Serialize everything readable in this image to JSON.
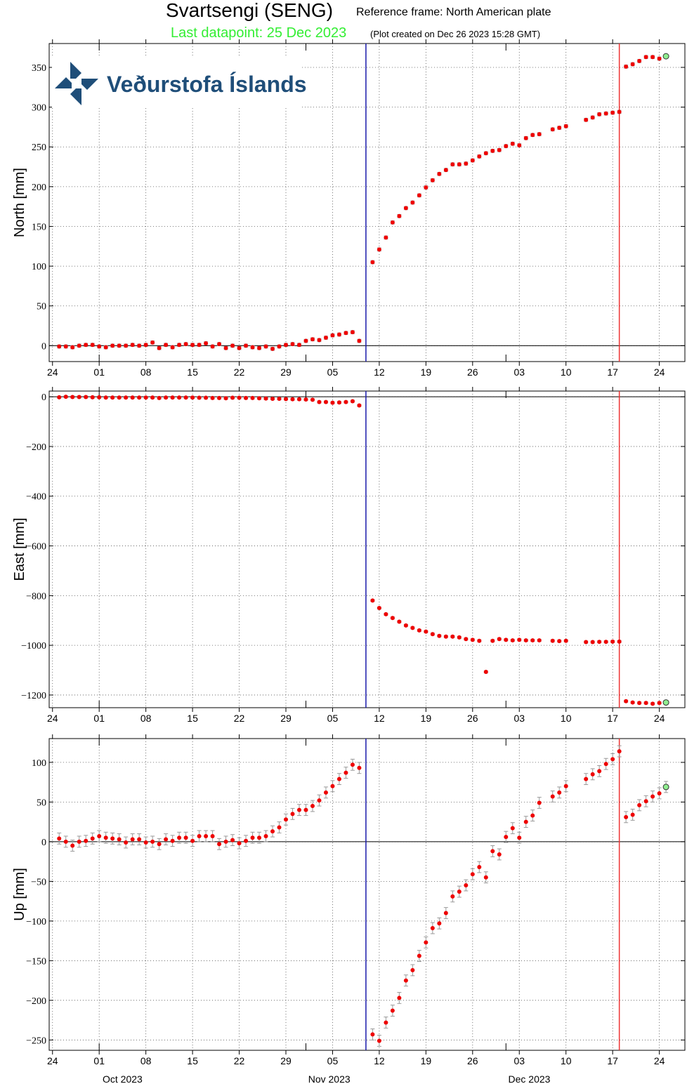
{
  "title": "Svartsengi (SENG)",
  "subtitle": "Reference frame: North American plate",
  "last_datapoint": "Last datapoint: 25 Dec 2023",
  "created": "(Plot created on Dec 26 2023 15:28 GMT)",
  "logo": "Veðurstofa Íslands",
  "chart_data": {
    "type": "scatter",
    "x": [
      "2023-09-25",
      "2023-09-26",
      "2023-09-27",
      "2023-09-28",
      "2023-09-29",
      "2023-09-30",
      "2023-10-01",
      "2023-10-02",
      "2023-10-03",
      "2023-10-04",
      "2023-10-05",
      "2023-10-06",
      "2023-10-07",
      "2023-10-08",
      "2023-10-09",
      "2023-10-10",
      "2023-10-11",
      "2023-10-12",
      "2023-10-13",
      "2023-10-14",
      "2023-10-15",
      "2023-10-16",
      "2023-10-17",
      "2023-10-18",
      "2023-10-19",
      "2023-10-20",
      "2023-10-21",
      "2023-10-22",
      "2023-10-23",
      "2023-10-24",
      "2023-10-25",
      "2023-10-26",
      "2023-10-27",
      "2023-10-28",
      "2023-10-29",
      "2023-10-30",
      "2023-10-31",
      "2023-11-01",
      "2023-11-02",
      "2023-11-03",
      "2023-11-04",
      "2023-11-05",
      "2023-11-06",
      "2023-11-07",
      "2023-11-08",
      "2023-11-09",
      "2023-11-11",
      "2023-11-12",
      "2023-11-13",
      "2023-11-14",
      "2023-11-15",
      "2023-11-16",
      "2023-11-17",
      "2023-11-18",
      "2023-11-19",
      "2023-11-20",
      "2023-11-21",
      "2023-11-22",
      "2023-11-23",
      "2023-11-24",
      "2023-11-25",
      "2023-11-26",
      "2023-11-27",
      "2023-11-28",
      "2023-11-29",
      "2023-11-30",
      "2023-12-01",
      "2023-12-02",
      "2023-12-03",
      "2023-12-04",
      "2023-12-05",
      "2023-12-06",
      "2023-12-08",
      "2023-12-09",
      "2023-12-10",
      "2023-12-13",
      "2023-12-14",
      "2023-12-15",
      "2023-12-16",
      "2023-12-17",
      "2023-12-18",
      "2023-12-19",
      "2023-12-20",
      "2023-12-21",
      "2023-12-22",
      "2023-12-23",
      "2023-12-24",
      "2023-12-25"
    ],
    "xlim": [
      "2023-09-23T12:00Z",
      "2023-12-27T20:00Z"
    ],
    "xticks": [
      {
        "value": "2023-09-24",
        "label": "24"
      },
      {
        "value": "2023-10-01",
        "label": "01"
      },
      {
        "value": "2023-10-08",
        "label": "08"
      },
      {
        "value": "2023-10-15",
        "label": "15"
      },
      {
        "value": "2023-10-22",
        "label": "22"
      },
      {
        "value": "2023-10-29",
        "label": "29"
      },
      {
        "value": "2023-11-05",
        "label": "05"
      },
      {
        "value": "2023-11-12",
        "label": "12"
      },
      {
        "value": "2023-11-19",
        "label": "19"
      },
      {
        "value": "2023-11-26",
        "label": "26"
      },
      {
        "value": "2023-12-03",
        "label": "03"
      },
      {
        "value": "2023-12-10",
        "label": "10"
      },
      {
        "value": "2023-12-17",
        "label": "17"
      },
      {
        "value": "2023-12-24",
        "label": "24"
      }
    ],
    "months": [
      {
        "value": "2023-10-01",
        "label": "Oct 2023"
      },
      {
        "value": "2023-11-01",
        "label": "Nov 2023"
      },
      {
        "value": "2023-12-01",
        "label": "Dec 2023"
      }
    ],
    "events": [
      {
        "x": "2023-11-10",
        "color": "#1a1aaa"
      },
      {
        "x": "2023-12-18",
        "color": "#ee3333"
      }
    ],
    "grid": true,
    "point_color": "#ee0000",
    "error_color": "#999999",
    "last_point_color": "#90ee90",
    "series": [
      {
        "ylabel": "North [mm]",
        "error": 2,
        "ylim": [
          -20,
          380
        ],
        "yticks": [
          0,
          50,
          100,
          150,
          200,
          250,
          300,
          350
        ],
        "values": [
          -1,
          -1,
          -2,
          0,
          1,
          1,
          -1,
          -2,
          0,
          0,
          0,
          1,
          0,
          1,
          4,
          -3,
          1,
          -2,
          1,
          2,
          1,
          1,
          3,
          -1,
          2,
          -3,
          0,
          -3,
          0,
          -2,
          -3,
          -1,
          -4,
          -1,
          1,
          2,
          1,
          6,
          8,
          7,
          10,
          13,
          14,
          16,
          17,
          6,
          105,
          121,
          136,
          155,
          163,
          173,
          180,
          189,
          199,
          208,
          216,
          221,
          228,
          228,
          229,
          233,
          238,
          242,
          245,
          246,
          251,
          254,
          252,
          261,
          265,
          266,
          272,
          274,
          276,
          284,
          287,
          291,
          292,
          293,
          294,
          351,
          354,
          358,
          363,
          363,
          361,
          364
        ]
      },
      {
        "ylabel": "East [mm]",
        "error": 4,
        "ylim": [
          -1251,
          23
        ],
        "yticks": [
          0,
          {
            "value": -200,
            "label": "−200"
          },
          {
            "value": -400,
            "label": "−400"
          },
          {
            "value": -600,
            "label": "−600"
          },
          {
            "value": -800,
            "label": "−800"
          },
          {
            "value": -1000,
            "label": "−1000"
          },
          {
            "value": -1200,
            "label": "−1200"
          }
        ],
        "values": [
          -2,
          0,
          -1,
          -1,
          -1,
          -2,
          -2,
          -3,
          -3,
          -3,
          -3,
          -3,
          -3,
          -3,
          -3,
          -5,
          -3,
          -3,
          -3,
          -3,
          -3,
          -4,
          -4,
          -5,
          -5,
          -6,
          -4,
          -4,
          -5,
          -5,
          -6,
          -7,
          -8,
          -8,
          -9,
          -10,
          -10,
          -11,
          -12,
          -21,
          -21,
          -24,
          -23,
          -21,
          -18,
          -35,
          -820,
          -850,
          -875,
          -890,
          -905,
          -920,
          -930,
          -940,
          -945,
          -955,
          -962,
          -965,
          -965,
          -968,
          -975,
          -978,
          -982,
          -1107,
          -982,
          -975,
          -978,
          -980,
          -978,
          -980,
          -980,
          -980,
          -982,
          -983,
          -982,
          -987,
          -987,
          -986,
          -986,
          -985,
          -985,
          -1225,
          -1230,
          -1232,
          -1232,
          -1235,
          -1232,
          -1230
        ]
      },
      {
        "ylabel": "Up [mm]",
        "error": 7,
        "ylim": [
          -263,
          130
        ],
        "yticks": [
          100,
          50,
          0,
          {
            "value": -50,
            "label": "−50"
          },
          {
            "value": -100,
            "label": "−100"
          },
          {
            "value": -150,
            "label": "−150"
          },
          {
            "value": -200,
            "label": "−200"
          },
          {
            "value": -250,
            "label": "−250"
          }
        ],
        "values": [
          4,
          0,
          -5,
          0,
          1,
          4,
          7,
          5,
          4,
          3,
          -1,
          3,
          3,
          -1,
          0,
          -3,
          3,
          1,
          5,
          5,
          1,
          7,
          7,
          7,
          -3,
          0,
          2,
          -2,
          1,
          5,
          5,
          7,
          13,
          18,
          28,
          35,
          40,
          40,
          45,
          52,
          62,
          70,
          79,
          87,
          97,
          93,
          -243,
          -251,
          -228,
          -213,
          -197,
          -175,
          -162,
          -144,
          -127,
          -109,
          -103,
          -90,
          -69,
          -63,
          -55,
          -41,
          -32,
          -45,
          -12,
          -16,
          6,
          17,
          5,
          25,
          33,
          49,
          57,
          62,
          70,
          79,
          85,
          89,
          98,
          104,
          114,
          31,
          34,
          46,
          51,
          57,
          61,
          69
        ]
      }
    ]
  }
}
